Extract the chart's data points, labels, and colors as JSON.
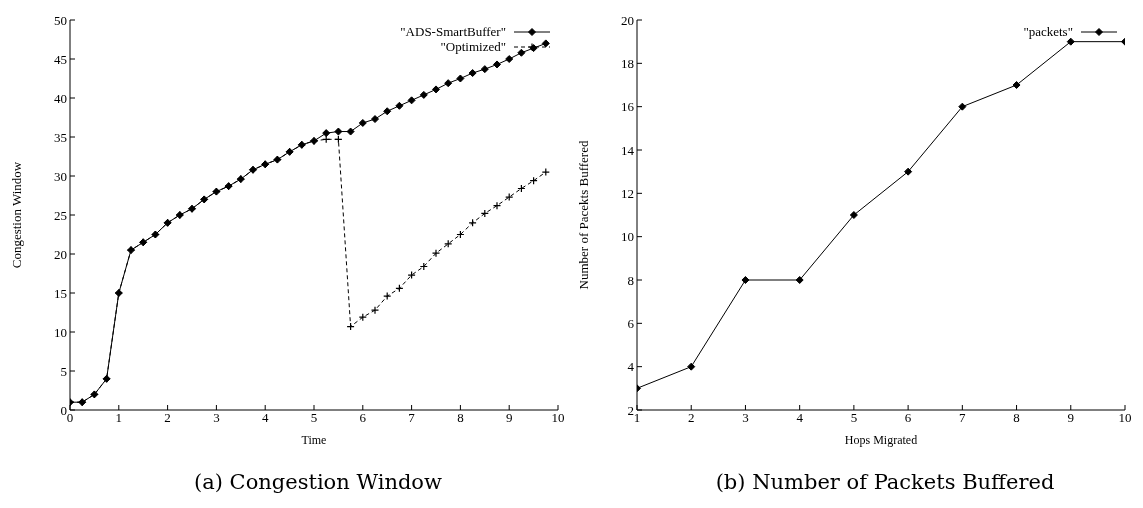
{
  "chart_data": [
    {
      "type": "line",
      "title": "(a) Congestion Window",
      "xlabel": "Time",
      "ylabel": "Congestion Window",
      "xlim": [
        0,
        10
      ],
      "xticks": [
        0,
        1,
        2,
        3,
        4,
        5,
        6,
        7,
        8,
        9,
        10
      ],
      "ylim": [
        0,
        50
      ],
      "yticks": [
        0,
        5,
        10,
        15,
        20,
        25,
        30,
        35,
        40,
        45,
        50
      ],
      "grid": false,
      "legend": "top right",
      "x": [
        0,
        0.25,
        0.5,
        0.75,
        1,
        1.25,
        1.5,
        1.75,
        2,
        2.25,
        2.5,
        2.75,
        3,
        3.25,
        3.5,
        3.75,
        4,
        4.25,
        4.5,
        4.75,
        5,
        5.25,
        5.5,
        5.75,
        6,
        6.25,
        6.5,
        6.75,
        7,
        7.25,
        7.5,
        7.75,
        8,
        8.25,
        8.5,
        8.75,
        9,
        9.25,
        9.5,
        9.75
      ],
      "series": [
        {
          "name": "\"ADS-SmartBuffer\"",
          "color": "#000000",
          "marker": "diamond",
          "line_style": "solid",
          "values": [
            1,
            1,
            2,
            4,
            15,
            20.5,
            21.5,
            22.5,
            24,
            25,
            25.8,
            27,
            28,
            28.7,
            29.6,
            30.8,
            31.5,
            32.1,
            33.1,
            34,
            34.5,
            35.5,
            35.7,
            35.7,
            36.8,
            37.3,
            38.3,
            39,
            39.7,
            40.4,
            41.1,
            41.9,
            42.5,
            43.2,
            43.7,
            44.3,
            45,
            45.8,
            46.4,
            47
          ]
        },
        {
          "name": "\"Optimized\"",
          "color": "#000000",
          "marker": "cross",
          "line_style": "dashed",
          "values": [
            1,
            1,
            2,
            4,
            15,
            20.5,
            21.5,
            22.5,
            24,
            25,
            25.8,
            27,
            28,
            28.7,
            29.6,
            30.8,
            31.5,
            32.1,
            33.1,
            34,
            34.5,
            34.7,
            34.7,
            10.7,
            11.9,
            12.8,
            14.6,
            15.6,
            17.3,
            18.4,
            20.1,
            21.3,
            22.5,
            24,
            25.2,
            26.2,
            27.3,
            28.4,
            29.4,
            30.5
          ]
        }
      ]
    },
    {
      "type": "line",
      "title": "(b) Number of Packets Buffered",
      "xlabel": "Hops Migrated",
      "ylabel": "Number of Pacekts Buffered",
      "xlim": [
        1,
        10
      ],
      "xticks": [
        1,
        2,
        3,
        4,
        5,
        6,
        7,
        8,
        9,
        10
      ],
      "ylim": [
        2,
        20
      ],
      "yticks": [
        2,
        4,
        6,
        8,
        10,
        12,
        14,
        16,
        18,
        20
      ],
      "grid": false,
      "legend": "top right",
      "x": [
        1,
        2,
        3,
        4,
        5,
        6,
        7,
        8,
        9,
        10
      ],
      "series": [
        {
          "name": "\"packets\"",
          "color": "#000000",
          "marker": "diamond",
          "line_style": "solid",
          "values": [
            3,
            4,
            8,
            8,
            11,
            13,
            16,
            17,
            19,
            19
          ]
        }
      ]
    }
  ]
}
